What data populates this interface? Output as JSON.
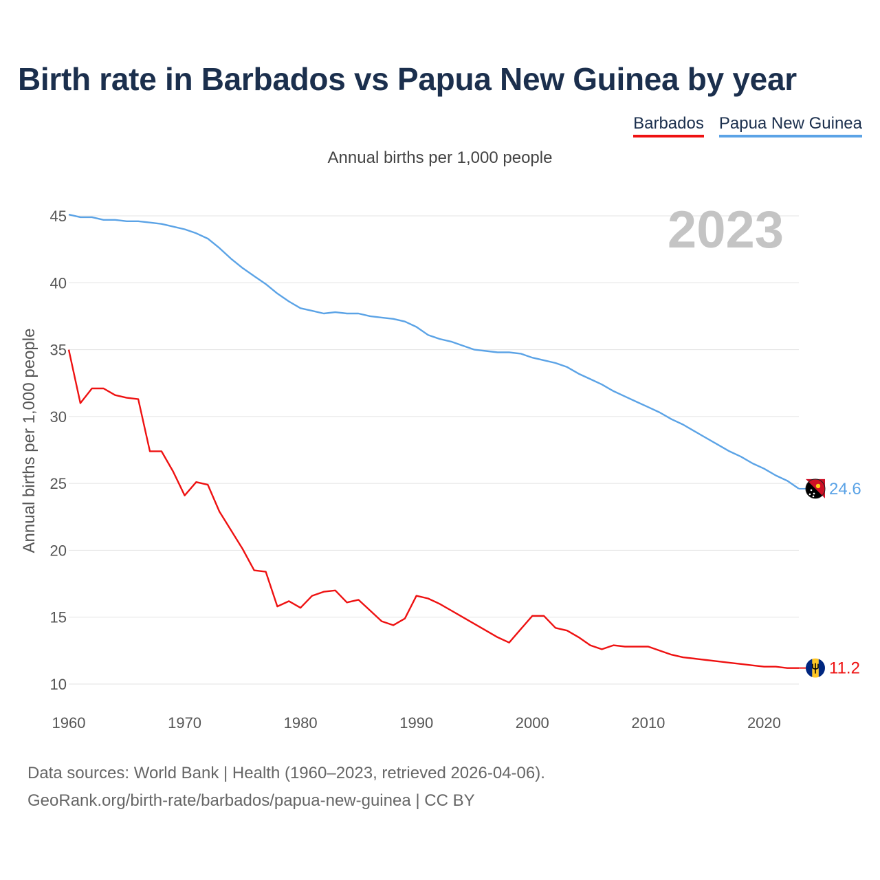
{
  "title": "Birth rate in Barbados vs Papua New Guinea by year",
  "subtitle": "Annual births per 1,000 people",
  "year_label": "2023",
  "legend": [
    {
      "label": "Barbados",
      "color": "#ee1111"
    },
    {
      "label": "Papua New Guinea",
      "color": "#5ba3e6"
    }
  ],
  "source": {
    "line1": "Data sources: World Bank | Health (1960–2023, retrieved 2026-04-06).",
    "line2": "GeoRank.org/birth-rate/barbados/papua-new-guinea | CC BY"
  },
  "icons": {
    "png_flag": "papua-new-guinea-flag-icon",
    "brb_flag": "barbados-flag-icon"
  },
  "chart_data": {
    "type": "line",
    "ylabel": "Annual births per 1,000 people",
    "xlabel": "",
    "xlim": [
      1960,
      2023
    ],
    "ylim": [
      10,
      45
    ],
    "x_ticks": [
      1960,
      1970,
      1980,
      1990,
      2000,
      2010,
      2020
    ],
    "y_ticks": [
      10,
      15,
      20,
      25,
      30,
      35,
      40,
      45
    ],
    "grid": true,
    "x": [
      1960,
      1961,
      1962,
      1963,
      1964,
      1965,
      1966,
      1967,
      1968,
      1969,
      1970,
      1971,
      1972,
      1973,
      1974,
      1975,
      1976,
      1977,
      1978,
      1979,
      1980,
      1981,
      1982,
      1983,
      1984,
      1985,
      1986,
      1987,
      1988,
      1989,
      1990,
      1991,
      1992,
      1993,
      1994,
      1995,
      1996,
      1997,
      1998,
      1999,
      2000,
      2001,
      2002,
      2003,
      2004,
      2005,
      2006,
      2007,
      2008,
      2009,
      2010,
      2011,
      2012,
      2013,
      2014,
      2015,
      2016,
      2017,
      2018,
      2019,
      2020,
      2021,
      2022,
      2023
    ],
    "series": [
      {
        "name": "Barbados",
        "color": "#ee1111",
        "end_label": "11.2",
        "values": [
          35.0,
          31.0,
          32.1,
          32.1,
          31.6,
          31.4,
          31.3,
          27.4,
          27.4,
          25.9,
          24.1,
          25.1,
          24.9,
          22.9,
          21.5,
          20.1,
          18.5,
          18.4,
          15.8,
          16.2,
          15.7,
          16.6,
          16.9,
          17.0,
          16.1,
          16.3,
          15.5,
          14.7,
          14.4,
          14.9,
          16.6,
          16.4,
          16.0,
          15.5,
          15.0,
          14.5,
          14.0,
          13.5,
          13.1,
          14.1,
          15.1,
          15.1,
          14.2,
          14.0,
          13.5,
          12.9,
          12.6,
          12.9,
          12.8,
          12.8,
          12.8,
          12.5,
          12.2,
          12.0,
          11.9,
          11.8,
          11.7,
          11.6,
          11.5,
          11.4,
          11.3,
          11.3,
          11.2,
          11.2
        ]
      },
      {
        "name": "Papua New Guinea",
        "color": "#5ba3e6",
        "end_label": "24.6",
        "values": [
          45.1,
          44.9,
          44.9,
          44.7,
          44.7,
          44.6,
          44.6,
          44.5,
          44.4,
          44.2,
          44.0,
          43.7,
          43.3,
          42.6,
          41.8,
          41.1,
          40.5,
          39.9,
          39.2,
          38.6,
          38.1,
          37.9,
          37.7,
          37.8,
          37.7,
          37.7,
          37.5,
          37.4,
          37.3,
          37.1,
          36.7,
          36.1,
          35.8,
          35.6,
          35.3,
          35.0,
          34.9,
          34.8,
          34.8,
          34.7,
          34.4,
          34.2,
          34.0,
          33.7,
          33.2,
          32.8,
          32.4,
          31.9,
          31.5,
          31.1,
          30.7,
          30.3,
          29.8,
          29.4,
          28.9,
          28.4,
          27.9,
          27.4,
          27.0,
          26.5,
          26.1,
          25.6,
          25.2,
          24.6
        ]
      }
    ]
  }
}
